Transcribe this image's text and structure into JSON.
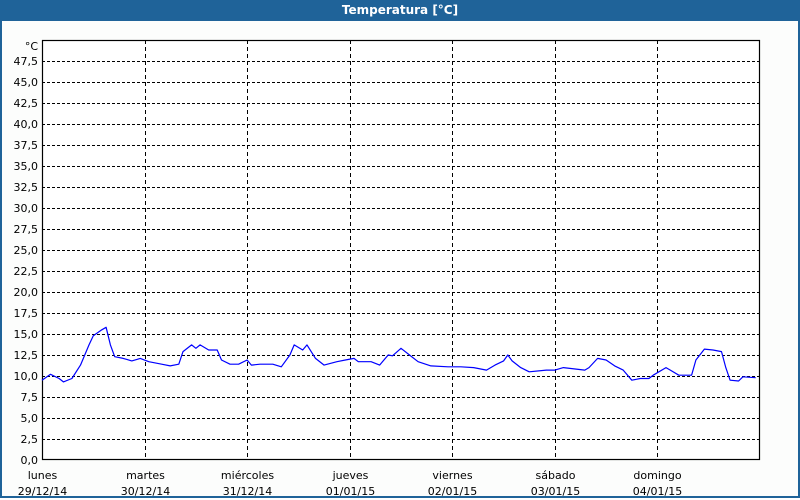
{
  "window": {
    "title": "Temperatura [°C]"
  },
  "colors": {
    "titlebar": "#1f6399",
    "series": "#0000ff",
    "grid": "#000000"
  },
  "chart_data": {
    "type": "line",
    "title": "Temperatura [°C]",
    "ylabel": "°C",
    "ylim": [
      0,
      50
    ],
    "yticks": [
      "0,0",
      "2,5",
      "5,0",
      "7,5",
      "10,0",
      "12,5",
      "15,0",
      "17,5",
      "20,0",
      "22,5",
      "25,0",
      "27,5",
      "30,0",
      "32,5",
      "35,0",
      "37,5",
      "40,0",
      "42,5",
      "45,0",
      "47,5"
    ],
    "xlim": [
      "2014-12-29T00:00",
      "2015-01-05T00:00"
    ],
    "xticks": [
      {
        "day": "lunes",
        "date": "29/12/14",
        "at": "2014-12-29T00:00"
      },
      {
        "day": "martes",
        "date": "30/12/14",
        "at": "2014-12-30T00:00"
      },
      {
        "day": "miércoles",
        "date": "31/12/14",
        "at": "2014-12-31T00:00"
      },
      {
        "day": "jueves",
        "date": "01/01/15",
        "at": "2015-01-01T00:00"
      },
      {
        "day": "viernes",
        "date": "02/01/15",
        "at": "2015-01-02T00:00"
      },
      {
        "day": "sábado",
        "date": "03/01/15",
        "at": "2015-01-03T00:00"
      },
      {
        "day": "domingo",
        "date": "04/01/15",
        "at": "2015-01-04T00:00"
      }
    ],
    "grid": true,
    "series": [
      {
        "points": [
          [
            "2014-12-29T00:00",
            9.5
          ],
          [
            "2014-12-29T02:00",
            10.2
          ],
          [
            "2014-12-29T04:00",
            9.7
          ],
          [
            "2014-12-29T05:00",
            9.3
          ],
          [
            "2014-12-29T07:00",
            9.7
          ],
          [
            "2014-12-29T09:00",
            11.3
          ],
          [
            "2014-12-29T11:00",
            13.7
          ],
          [
            "2014-12-29T12:00",
            14.8
          ],
          [
            "2014-12-29T14:00",
            15.5
          ],
          [
            "2014-12-29T15:00",
            15.8
          ],
          [
            "2014-12-29T16:00",
            13.7
          ],
          [
            "2014-12-29T17:00",
            12.3
          ],
          [
            "2014-12-29T19:00",
            12.1
          ],
          [
            "2014-12-29T21:00",
            11.8
          ],
          [
            "2014-12-29T23:00",
            12.1
          ],
          [
            "2014-12-30T01:00",
            11.7
          ],
          [
            "2014-12-30T04:00",
            11.4
          ],
          [
            "2014-12-30T06:00",
            11.2
          ],
          [
            "2014-12-30T08:00",
            11.4
          ],
          [
            "2014-12-30T09:00",
            12.9
          ],
          [
            "2014-12-30T11:00",
            13.7
          ],
          [
            "2014-12-30T12:00",
            13.3
          ],
          [
            "2014-12-30T13:00",
            13.7
          ],
          [
            "2014-12-30T15:00",
            13.1
          ],
          [
            "2014-12-30T17:00",
            13.1
          ],
          [
            "2014-12-30T18:00",
            11.9
          ],
          [
            "2014-12-30T20:00",
            11.4
          ],
          [
            "2014-12-30T22:00",
            11.4
          ],
          [
            "2014-12-31T00:00",
            11.9
          ],
          [
            "2014-12-31T01:00",
            11.3
          ],
          [
            "2014-12-31T03:00",
            11.4
          ],
          [
            "2014-12-31T06:00",
            11.4
          ],
          [
            "2014-12-31T08:00",
            11.1
          ],
          [
            "2014-12-31T10:00",
            12.5
          ],
          [
            "2014-12-31T11:00",
            13.7
          ],
          [
            "2014-12-31T13:00",
            13.1
          ],
          [
            "2014-12-31T14:00",
            13.7
          ],
          [
            "2014-12-31T16:00",
            12.1
          ],
          [
            "2014-12-31T18:00",
            11.3
          ],
          [
            "2014-12-31T21:00",
            11.7
          ],
          [
            "2014-12-31T23:00",
            11.9
          ],
          [
            "2015-01-01T01:00",
            12.1
          ],
          [
            "2015-01-01T02:00",
            11.7
          ],
          [
            "2015-01-01T05:00",
            11.7
          ],
          [
            "2015-01-01T07:00",
            11.3
          ],
          [
            "2015-01-01T09:00",
            12.5
          ],
          [
            "2015-01-01T10:00",
            12.4
          ],
          [
            "2015-01-01T12:00",
            13.3
          ],
          [
            "2015-01-01T14:00",
            12.5
          ],
          [
            "2015-01-01T16:00",
            11.7
          ],
          [
            "2015-01-01T19:00",
            11.2
          ],
          [
            "2015-01-01T23:00",
            11.1
          ],
          [
            "2015-01-02T02:00",
            11.1
          ],
          [
            "2015-01-02T05:00",
            11.0
          ],
          [
            "2015-01-02T08:00",
            10.7
          ],
          [
            "2015-01-02T10:00",
            11.3
          ],
          [
            "2015-01-02T12:00",
            11.8
          ],
          [
            "2015-01-02T13:00",
            12.5
          ],
          [
            "2015-01-02T14:00",
            11.8
          ],
          [
            "2015-01-02T16:00",
            11.0
          ],
          [
            "2015-01-02T18:00",
            10.5
          ],
          [
            "2015-01-02T22:00",
            10.7
          ],
          [
            "2015-01-03T00:00",
            10.7
          ],
          [
            "2015-01-03T02:00",
            11.0
          ],
          [
            "2015-01-03T07:00",
            10.7
          ],
          [
            "2015-01-03T08:00",
            11.0
          ],
          [
            "2015-01-03T10:00",
            12.1
          ],
          [
            "2015-01-03T12:00",
            11.9
          ],
          [
            "2015-01-03T14:00",
            11.2
          ],
          [
            "2015-01-03T16:00",
            10.7
          ],
          [
            "2015-01-03T18:00",
            9.5
          ],
          [
            "2015-01-03T20:00",
            9.7
          ],
          [
            "2015-01-03T22:00",
            9.7
          ],
          [
            "2015-01-03T23:00",
            10.1
          ],
          [
            "2015-01-04T02:00",
            11.0
          ],
          [
            "2015-01-04T03:00",
            10.7
          ],
          [
            "2015-01-04T05:00",
            10.1
          ],
          [
            "2015-01-04T08:00",
            10.1
          ],
          [
            "2015-01-04T09:00",
            11.9
          ],
          [
            "2015-01-04T11:00",
            13.2
          ],
          [
            "2015-01-04T13:00",
            13.1
          ],
          [
            "2015-01-04T15:00",
            12.9
          ],
          [
            "2015-01-04T16:00",
            11.0
          ],
          [
            "2015-01-04T17:00",
            9.5
          ],
          [
            "2015-01-04T19:00",
            9.4
          ],
          [
            "2015-01-04T20:00",
            9.9
          ],
          [
            "2015-01-04T23:00",
            9.8
          ]
        ]
      }
    ]
  }
}
